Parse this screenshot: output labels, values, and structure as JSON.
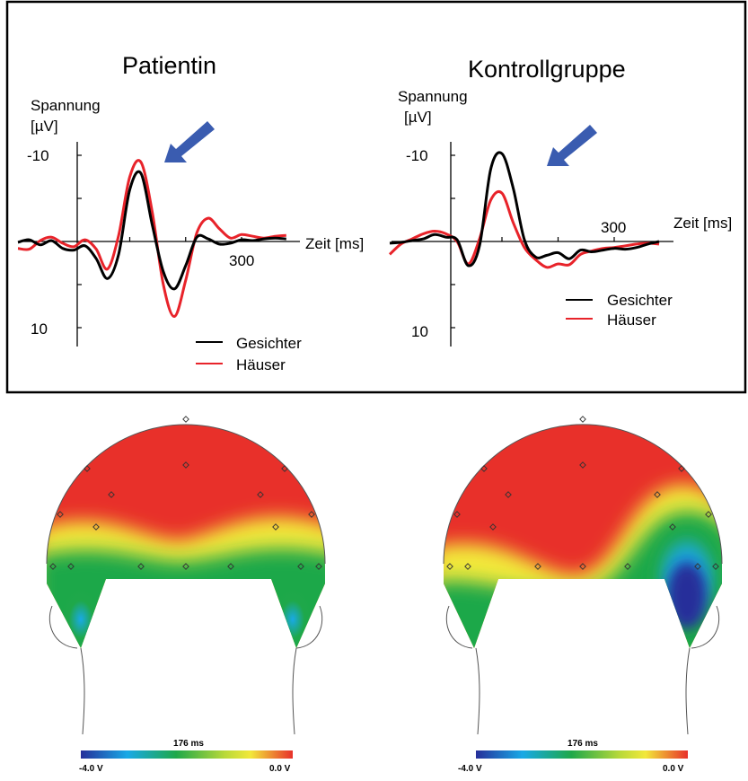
{
  "colors": {
    "gesichter": "#000000",
    "haeuser": "#e8232a",
    "arrow": "#3a5cb0",
    "topo_red": "#e8302a",
    "topo_yellow": "#f2e83a",
    "topo_green": "#1fa84a",
    "topo_cyan": "#19a9e6",
    "topo_blue": "#262f9a"
  },
  "chart_data": [
    {
      "type": "line",
      "title": "Patientin",
      "ylabel_line1": "Spannung",
      "ylabel_line2": "[µV]",
      "xlabel": "Zeit [ms]",
      "y_inverted": true,
      "ylim": [
        -10,
        10
      ],
      "y_ticks": [
        "-10",
        "10"
      ],
      "x_tick_label": "300",
      "x": [
        -100,
        -80,
        -60,
        -40,
        -20,
        0,
        20,
        40,
        60,
        80,
        100,
        120,
        140,
        160,
        180,
        200,
        220,
        240,
        260,
        280,
        300,
        320,
        340,
        360,
        380
      ],
      "series": [
        {
          "name": "Gesichter",
          "color_key": "gesichter",
          "values": [
            0.1,
            -0.2,
            0.4,
            -0.1,
            0.8,
            1.0,
            0.5,
            2.0,
            4.3,
            1.5,
            -6.0,
            -7.9,
            -2.0,
            3.5,
            5.5,
            2.8,
            -0.5,
            -0.3,
            0.3,
            0.2,
            -0.2,
            -0.1,
            -0.3,
            -0.4,
            -0.3
          ]
        },
        {
          "name": "Häuser",
          "color_key": "haeuser",
          "values": [
            0.8,
            0.9,
            -0.1,
            -0.5,
            0.2,
            0.6,
            -0.2,
            0.9,
            3.2,
            -0.7,
            -7.5,
            -9.2,
            -3.5,
            5.0,
            8.7,
            4.5,
            -1.0,
            -2.7,
            -1.5,
            -0.4,
            -0.8,
            -0.6,
            -0.4,
            -0.6,
            -0.7
          ]
        }
      ],
      "annotation": "blue arrow pointing at negative peak"
    },
    {
      "type": "line",
      "title": "Kontrollgruppe",
      "ylabel_line1": "Spannung",
      "ylabel_line2": "[µV]",
      "xlabel": "Zeit [ms]",
      "y_inverted": true,
      "ylim": [
        -10,
        10
      ],
      "y_ticks": [
        "-10",
        "10"
      ],
      "x_tick_label": "300",
      "x": [
        -100,
        -80,
        -60,
        -40,
        -20,
        0,
        20,
        40,
        60,
        80,
        100,
        120,
        140,
        160,
        180,
        200,
        220,
        240,
        260,
        280,
        300,
        320,
        340,
        360,
        380
      ],
      "series": [
        {
          "name": "Gesichter",
          "color_key": "gesichter",
          "values": [
            0.2,
            0.1,
            -0.1,
            -0.3,
            -0.8,
            -0.5,
            -0.2,
            2.8,
            0.5,
            -8.4,
            -10.2,
            -6.2,
            -0.2,
            1.8,
            1.6,
            1.3,
            2.0,
            1.0,
            1.2,
            1.0,
            0.8,
            0.9,
            0.7,
            0.3,
            0.0
          ]
        },
        {
          "name": "Häuser",
          "color_key": "haeuser",
          "values": [
            1.5,
            0.3,
            -0.3,
            -0.9,
            -1.2,
            -0.9,
            0.0,
            2.6,
            -0.3,
            -4.8,
            -5.6,
            -2.2,
            0.7,
            2.1,
            3.0,
            2.6,
            2.7,
            1.5,
            1.1,
            0.8,
            0.7,
            0.5,
            0.3,
            0.2,
            0.3
          ]
        }
      ],
      "annotation": "blue arrow pointing at negative peak"
    }
  ],
  "topomaps": [
    {
      "time_label": "176 ms",
      "min_label": "-4.0 V",
      "max_label": "0.0 V"
    },
    {
      "time_label": "176 ms",
      "min_label": "-4.0 V",
      "max_label": "0.0 V"
    }
  ]
}
